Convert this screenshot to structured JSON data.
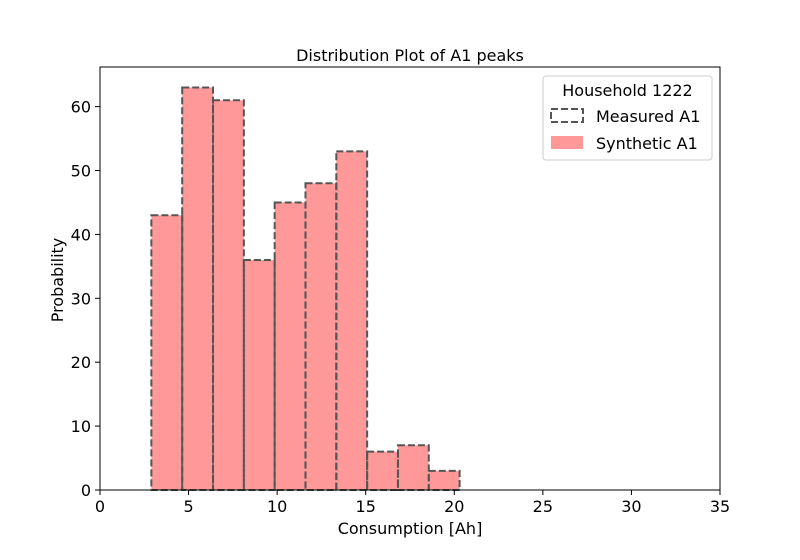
{
  "chart_data": {
    "type": "bar",
    "title": "Distribution Plot of A1 peaks",
    "xlabel": "Consumption [Ah]",
    "ylabel": "Probability",
    "xlim": [
      0,
      35
    ],
    "ylim": [
      0,
      66.2
    ],
    "xticks": [
      0,
      5,
      10,
      15,
      20,
      25,
      30,
      35
    ],
    "yticks": [
      0,
      10,
      20,
      30,
      40,
      50,
      60
    ],
    "bin_edges": [
      2.9,
      4.64,
      6.38,
      8.12,
      9.86,
      11.6,
      13.34,
      15.08,
      16.82,
      18.56,
      20.3
    ],
    "series": [
      {
        "name": "Measured A1",
        "style": "dashed-outline",
        "color": "#555555",
        "values": [
          43,
          63,
          61,
          36,
          45,
          48,
          53,
          6,
          7,
          3
        ]
      },
      {
        "name": "Synthetic A1",
        "style": "filled",
        "color": "#ff9999",
        "values": [
          43,
          63,
          61,
          36,
          45,
          48,
          53,
          6,
          7,
          3
        ]
      }
    ],
    "legend": {
      "title": "Household 1222",
      "placement": "top-right"
    },
    "grid": false
  }
}
